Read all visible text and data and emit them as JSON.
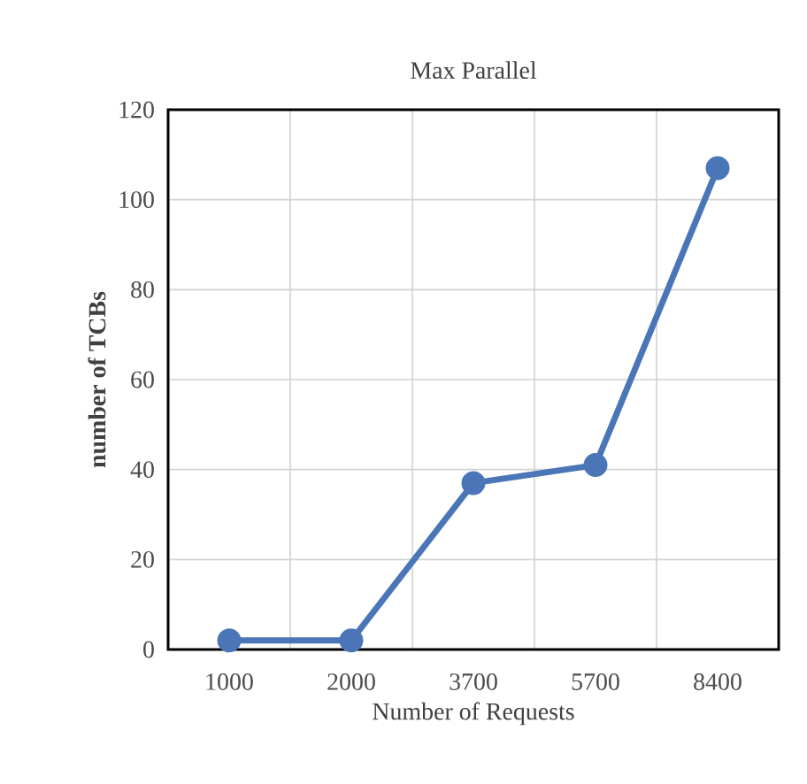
{
  "chart_data": {
    "type": "line",
    "title": "Max Parallel",
    "xlabel": "Number of Requests",
    "ylabel": "number of TCBs",
    "categories": [
      "1000",
      "2000",
      "3700",
      "5700",
      "8400"
    ],
    "series": [
      {
        "color": "#4a76b8",
        "values": [
          2,
          2,
          37,
          41,
          107
        ]
      }
    ],
    "ylim": [
      0,
      120
    ],
    "yticks": [
      0,
      20,
      40,
      60,
      80,
      100,
      120
    ],
    "grid": true,
    "marker": "circle",
    "line_style": "solid"
  }
}
